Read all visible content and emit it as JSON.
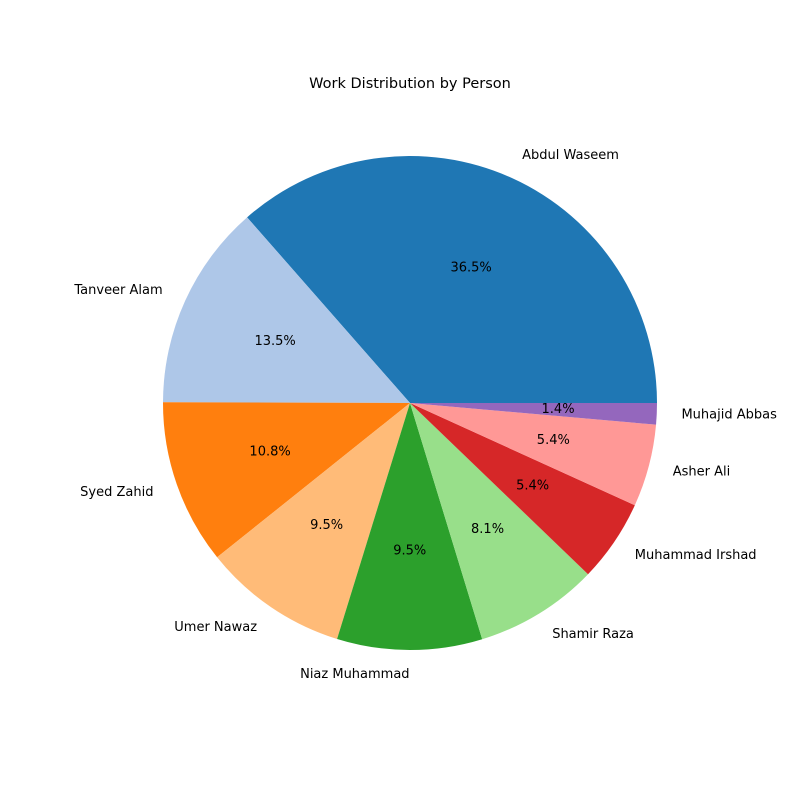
{
  "chart_data": {
    "type": "pie",
    "title": "Work Distribution by Person",
    "categories": [
      "Abdul Waseem",
      "Tanveer Alam",
      "Syed Zahid",
      "Umer Nawaz",
      "Niaz Muhammad",
      "Shamir Raza",
      "Muhammad Irshad",
      "Asher Ali",
      "Muhajid Abbas"
    ],
    "values": [
      36.5,
      13.5,
      10.8,
      9.5,
      9.5,
      8.1,
      5.4,
      5.4,
      1.4
    ],
    "value_labels": [
      "36.5%",
      "13.5%",
      "10.8%",
      "9.5%",
      "9.5%",
      "8.1%",
      "5.4%",
      "5.4%",
      "1.4%"
    ],
    "colors": [
      "#1f77b4",
      "#aec7e8",
      "#ff7f0e",
      "#ffbb78",
      "#2ca02c",
      "#98df8a",
      "#d62728",
      "#ff9896",
      "#9467bd"
    ],
    "start_angle_deg": 0,
    "direction": "counterclockwise"
  }
}
